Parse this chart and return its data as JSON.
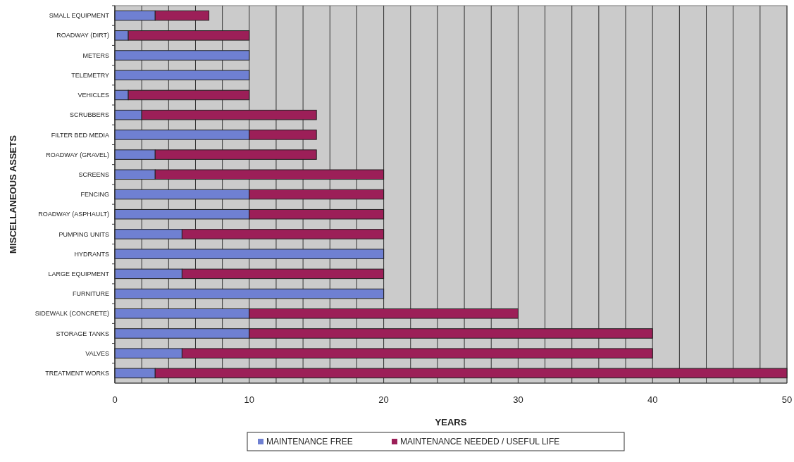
{
  "chart_data": {
    "type": "bar",
    "orientation": "horizontal",
    "stacked": true,
    "xlabel": "YEARS",
    "ylabel": "MISCELLANEOUS ASSETS",
    "categories": [
      "SMALL EQUIPMENT",
      "ROADWAY (DIRT)",
      "METERS",
      "TELEMETRY",
      "VEHICLES",
      "SCRUBBERS",
      "FILTER BED MEDIA",
      "ROADWAY (GRAVEL)",
      "SCREENS",
      "FENCING",
      "ROADWAY (ASPHAULT)",
      "PUMPING UNITS",
      "HYDRANTS",
      "LARGE EQUIPMENT",
      "FURNITURE",
      "SIDEWALK (CONCRETE)",
      "STORAGE TANKS",
      "VALVES",
      "TREATMENT WORKS"
    ],
    "series": [
      {
        "name": "MAINTENANCE FREE",
        "color": "#6f80d2",
        "values": [
          3,
          1,
          10,
          10,
          1,
          2,
          10,
          3,
          3,
          10,
          10,
          5,
          20,
          5,
          20,
          10,
          10,
          5,
          3
        ]
      },
      {
        "name": "MAINTENANCE NEEDED / USEFUL LIFE",
        "color": "#9c1f58",
        "values": [
          4,
          9,
          0,
          0,
          9,
          13,
          5,
          12,
          17,
          10,
          10,
          15,
          0,
          15,
          0,
          20,
          30,
          35,
          47
        ]
      }
    ],
    "xlim": [
      0,
      50
    ],
    "xticks": [
      0,
      {
        "value": 2,
        "label": null
      },
      {
        "value": 4,
        "label": null
      },
      {
        "value": 6,
        "label": null
      },
      {
        "value": 8,
        "label": null
      },
      10,
      {
        "value": 12,
        "label": null
      },
      {
        "value": 14,
        "label": null
      },
      {
        "value": 16,
        "label": null
      },
      {
        "value": 18,
        "label": null
      },
      20,
      {
        "value": 22,
        "label": null
      },
      {
        "value": 24,
        "label": null
      },
      {
        "value": 26,
        "label": null
      },
      {
        "value": 28,
        "label": null
      },
      30,
      {
        "value": 32,
        "label": null
      },
      {
        "value": 34,
        "label": null
      },
      {
        "value": 36,
        "label": null
      },
      {
        "value": 38,
        "label": null
      },
      40,
      {
        "value": 42,
        "label": null
      },
      {
        "value": 44,
        "label": null
      },
      {
        "value": 46,
        "label": null
      },
      {
        "value": 48,
        "label": null
      },
      50
    ],
    "grid": "x",
    "legend": "bottom"
  }
}
